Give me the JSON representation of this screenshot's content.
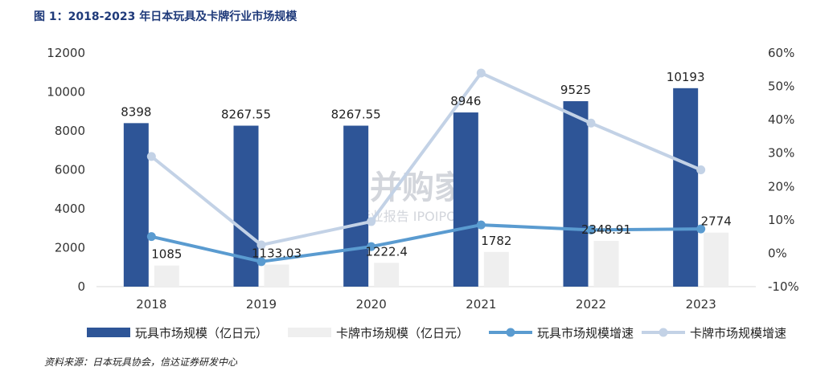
{
  "title": "图 1：2018-2023 年日本玩具及卡牌行业市场规模",
  "source": "资料来源：日本玩具协会，信达证券研发中心",
  "watermark": {
    "main": "并购家",
    "sub": "行业报告 IPOIPO.CN"
  },
  "colors": {
    "toy_bar": "#2e5597",
    "card_bar": "#efefef",
    "toy_line": "#5a9bd0",
    "card_line": "#c3d2e6"
  },
  "chart_data": {
    "type": "bar",
    "categories": [
      "2018",
      "2019",
      "2020",
      "2021",
      "2022",
      "2023"
    ],
    "series": [
      {
        "name": "玩具市场规模（亿日元）",
        "type": "bar",
        "axis": "left",
        "values": [
          8398,
          8267.55,
          8267.55,
          8946,
          9525,
          10193
        ],
        "labels": [
          "8398",
          "8267.55",
          "8267.55",
          "8946",
          "9525",
          "10193"
        ]
      },
      {
        "name": "卡牌市场规模（亿日元）",
        "type": "bar",
        "axis": "left",
        "values": [
          1085,
          1133.03,
          1222.4,
          1782,
          2348.91,
          2774
        ],
        "labels": [
          "1085",
          "1133.03",
          "1222.4",
          "1782",
          "2348.91",
          "2774"
        ]
      },
      {
        "name": "玩具市场规模增速",
        "type": "line",
        "axis": "right",
        "values": [
          5,
          -2.5,
          2,
          8.5,
          7,
          7.3
        ]
      },
      {
        "name": "卡牌市场规模增速",
        "type": "line",
        "axis": "right",
        "values": [
          29,
          2.5,
          9.5,
          54,
          39,
          25
        ]
      }
    ],
    "left_axis": {
      "min": 0,
      "max": 12000,
      "ticks": [
        "0",
        "2000",
        "4000",
        "6000",
        "8000",
        "10000",
        "12000"
      ]
    },
    "right_axis": {
      "min": -10,
      "max": 60,
      "ticks": [
        "-10%",
        "0%",
        "10%",
        "20%",
        "30%",
        "40%",
        "50%",
        "60%"
      ]
    },
    "grid": false,
    "legend": "bottom"
  }
}
